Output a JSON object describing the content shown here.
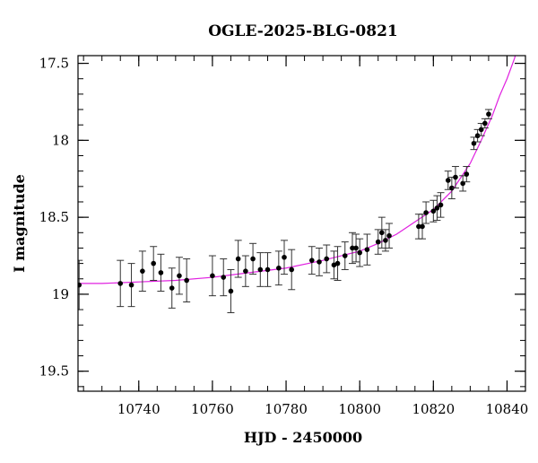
{
  "chart_data": {
    "type": "scatter",
    "title": "OGLE-2025-BLG-0821",
    "xlabel": "HJD - 2450000",
    "ylabel": "I magnitude",
    "xlim": [
      10723.5,
      10845
    ],
    "ylim": [
      19.63,
      17.45
    ],
    "y_inverted": true,
    "xticks": [
      10740,
      10760,
      10780,
      10800,
      10820,
      10840
    ],
    "xtick_labels": [
      "10740",
      "10760",
      "10780",
      "10800",
      "10820",
      "10840"
    ],
    "yticks": [
      17.5,
      18,
      18.5,
      19,
      19.5
    ],
    "ytick_labels": [
      "17.5",
      "18",
      "18.5",
      "19",
      "19.5"
    ],
    "x_minor_step": 5,
    "y_minor_step": 0.1,
    "grid": false,
    "legend": "none",
    "colors": {
      "points": "#000000",
      "model": "#e020e0",
      "frame": "#000000"
    },
    "series": [
      {
        "style": "points-with-errorbars",
        "x": [
          10723.8,
          10735.0,
          10738.0,
          10741.0,
          10744.0,
          10746.0,
          10749.0,
          10751.0,
          10753.0,
          10760.0,
          10763.0,
          10765.0,
          10767.0,
          10769.0,
          10771.0,
          10773.0,
          10775.0,
          10778.0,
          10779.5,
          10781.5,
          10787.0,
          10789.0,
          10791.0,
          10793.0,
          10794.0,
          10796.0,
          10798.0,
          10799.0,
          10800.0,
          10802.0,
          10805.0,
          10806.0,
          10807.0,
          10808.0,
          10816.0,
          10817.0,
          10818.0,
          10820.0,
          10821.0,
          10822.0,
          10824.0,
          10825.0,
          10826.0,
          10828.0,
          10829.0,
          10831.0,
          10832.0,
          10833.0,
          10834.0,
          10835.0
        ],
        "y": [
          18.94,
          18.93,
          18.94,
          18.85,
          18.8,
          18.86,
          18.96,
          18.88,
          18.91,
          18.88,
          18.89,
          18.98,
          18.77,
          18.85,
          18.77,
          18.84,
          18.84,
          18.83,
          18.76,
          18.84,
          18.78,
          18.79,
          18.77,
          18.81,
          18.8,
          18.75,
          18.7,
          18.7,
          18.73,
          18.71,
          18.66,
          18.6,
          18.65,
          18.62,
          18.56,
          18.56,
          18.47,
          18.46,
          18.44,
          18.42,
          18.26,
          18.31,
          18.24,
          18.28,
          18.22,
          18.02,
          17.97,
          17.93,
          17.89,
          17.83
        ],
        "yerr": [
          0.16,
          0.15,
          0.14,
          0.13,
          0.11,
          0.12,
          0.13,
          0.12,
          0.14,
          0.13,
          0.12,
          0.14,
          0.12,
          0.1,
          0.1,
          0.11,
          0.11,
          0.11,
          0.11,
          0.13,
          0.09,
          0.09,
          0.09,
          0.09,
          0.11,
          0.09,
          0.1,
          0.09,
          0.09,
          0.1,
          0.08,
          0.1,
          0.07,
          0.08,
          0.08,
          0.08,
          0.07,
          0.07,
          0.08,
          0.08,
          0.06,
          0.07,
          0.07,
          0.05,
          0.05,
          0.04,
          0.04,
          0.04,
          0.03,
          0.03
        ]
      },
      {
        "style": "model-line",
        "x": [
          10723.5,
          10730,
          10740,
          10750,
          10760,
          10770,
          10780,
          10790,
          10800,
          10805,
          10810,
          10815,
          10820,
          10825,
          10830,
          10833,
          10836,
          10838,
          10840,
          10842,
          10843.5
        ],
        "y": [
          18.93,
          18.93,
          18.92,
          18.91,
          18.89,
          18.86,
          18.83,
          18.78,
          18.72,
          18.67,
          18.61,
          18.53,
          18.45,
          18.33,
          18.15,
          18.0,
          17.84,
          17.71,
          17.6,
          17.47,
          17.35
        ]
      }
    ]
  }
}
